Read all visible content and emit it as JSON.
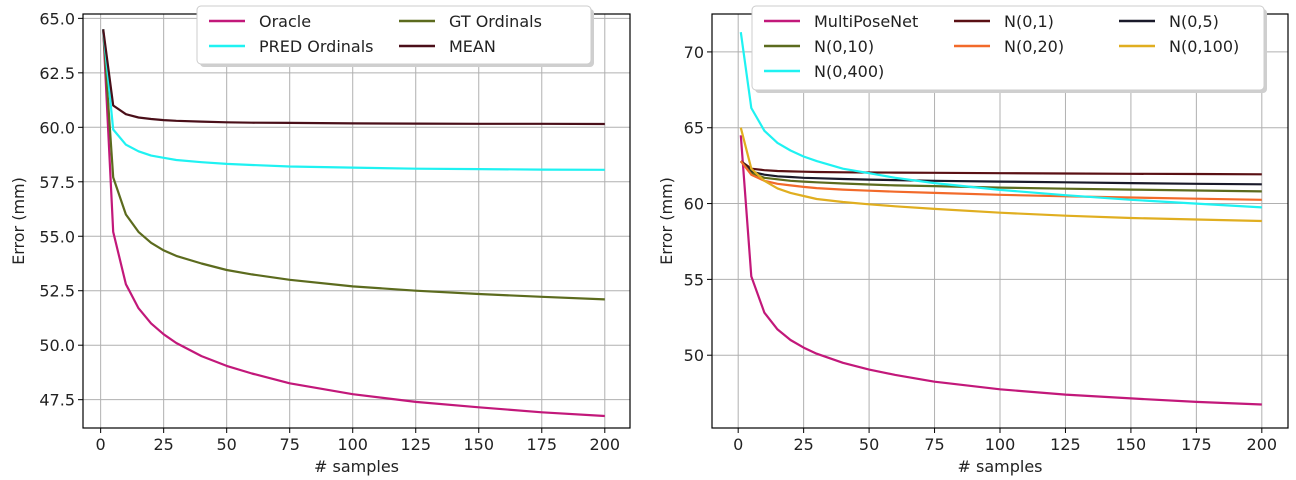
{
  "chart_data": [
    {
      "type": "line",
      "title": "",
      "xlabel": "# samples",
      "ylabel": "Error (mm)",
      "xlim": [
        -7,
        210
      ],
      "ylim": [
        46.2,
        65.2
      ],
      "xticks": [
        0,
        25,
        50,
        75,
        100,
        125,
        150,
        175,
        200
      ],
      "yticks": [
        47.5,
        50.0,
        52.5,
        55.0,
        57.5,
        60.0,
        62.5,
        65.0
      ],
      "ytick_format": "1dp",
      "grid": true,
      "legend": {
        "placement": "top-center",
        "columns": 2
      },
      "x": [
        1,
        5,
        10,
        15,
        20,
        25,
        30,
        40,
        50,
        60,
        75,
        100,
        125,
        150,
        175,
        200
      ],
      "series": [
        {
          "name": "Oracle",
          "color": "#c2187a",
          "values": [
            64.5,
            55.2,
            52.8,
            51.7,
            51.0,
            50.5,
            50.1,
            49.5,
            49.05,
            48.7,
            48.25,
            47.75,
            47.4,
            47.15,
            46.92,
            46.75
          ]
        },
        {
          "name": "GT Ordinals",
          "color": "#5c6b1e",
          "values": [
            64.5,
            57.7,
            56.0,
            55.2,
            54.7,
            54.35,
            54.1,
            53.75,
            53.45,
            53.25,
            53.0,
            52.7,
            52.5,
            52.35,
            52.22,
            52.1
          ]
        },
        {
          "name": "PRED Ordinals",
          "color": "#1ff2f2",
          "values": [
            64.5,
            59.9,
            59.2,
            58.9,
            58.7,
            58.6,
            58.5,
            58.4,
            58.32,
            58.27,
            58.2,
            58.15,
            58.1,
            58.08,
            58.06,
            58.05
          ]
        },
        {
          "name": "MEAN",
          "color": "#4a0f19",
          "values": [
            64.5,
            61.0,
            60.6,
            60.45,
            60.38,
            60.33,
            60.3,
            60.26,
            60.23,
            60.21,
            60.2,
            60.18,
            60.17,
            60.16,
            60.16,
            60.15
          ]
        }
      ]
    },
    {
      "type": "line",
      "title": "",
      "xlabel": "# samples",
      "ylabel": "Error (mm)",
      "xlim": [
        -10,
        210
      ],
      "ylim": [
        45.2,
        72.5
      ],
      "xticks": [
        0,
        25,
        50,
        75,
        100,
        125,
        150,
        175,
        200
      ],
      "yticks": [
        50,
        55,
        60,
        65,
        70
      ],
      "ytick_format": "int",
      "grid": true,
      "legend": {
        "placement": "top-center",
        "columns": 3
      },
      "x": [
        1,
        5,
        10,
        15,
        20,
        25,
        30,
        40,
        50,
        60,
        75,
        100,
        125,
        150,
        175,
        200
      ],
      "series": [
        {
          "name": "MultiPoseNet",
          "color": "#c2187a",
          "values": [
            64.5,
            55.2,
            52.8,
            51.7,
            51.0,
            50.5,
            50.1,
            49.5,
            49.05,
            48.7,
            48.25,
            47.75,
            47.4,
            47.15,
            46.92,
            46.75
          ]
        },
        {
          "name": "N(0,1)",
          "color": "#5a1014",
          "values": [
            62.8,
            62.3,
            62.2,
            62.15,
            62.12,
            62.1,
            62.08,
            62.06,
            62.05,
            62.04,
            62.03,
            62.0,
            61.98,
            61.96,
            61.95,
            61.93
          ]
        },
        {
          "name": "N(0,5)",
          "color": "#1a1a2a",
          "values": [
            62.8,
            62.1,
            61.9,
            61.8,
            61.75,
            61.7,
            61.67,
            61.62,
            61.58,
            61.55,
            61.5,
            61.45,
            61.4,
            61.35,
            61.3,
            61.27
          ]
        },
        {
          "name": "N(0,10)",
          "color": "#5c6b1e",
          "values": [
            62.8,
            62.0,
            61.7,
            61.6,
            61.5,
            61.45,
            61.4,
            61.32,
            61.26,
            61.2,
            61.15,
            61.05,
            60.98,
            60.92,
            60.86,
            60.8
          ]
        },
        {
          "name": "N(0,20)",
          "color": "#f26a2a",
          "values": [
            62.8,
            61.9,
            61.5,
            61.3,
            61.2,
            61.1,
            61.02,
            60.92,
            60.85,
            60.78,
            60.7,
            60.58,
            60.48,
            60.4,
            60.32,
            60.25
          ]
        },
        {
          "name": "N(0,100)",
          "color": "#e0ae20",
          "values": [
            65.0,
            62.3,
            61.5,
            61.0,
            60.7,
            60.5,
            60.3,
            60.1,
            59.95,
            59.82,
            59.65,
            59.4,
            59.2,
            59.05,
            58.95,
            58.85
          ]
        },
        {
          "name": "N(0,400)",
          "color": "#1ff2f2",
          "values": [
            71.3,
            66.3,
            64.8,
            64.0,
            63.5,
            63.1,
            62.8,
            62.3,
            62.0,
            61.7,
            61.35,
            60.9,
            60.55,
            60.25,
            60.0,
            59.75
          ]
        }
      ]
    }
  ]
}
